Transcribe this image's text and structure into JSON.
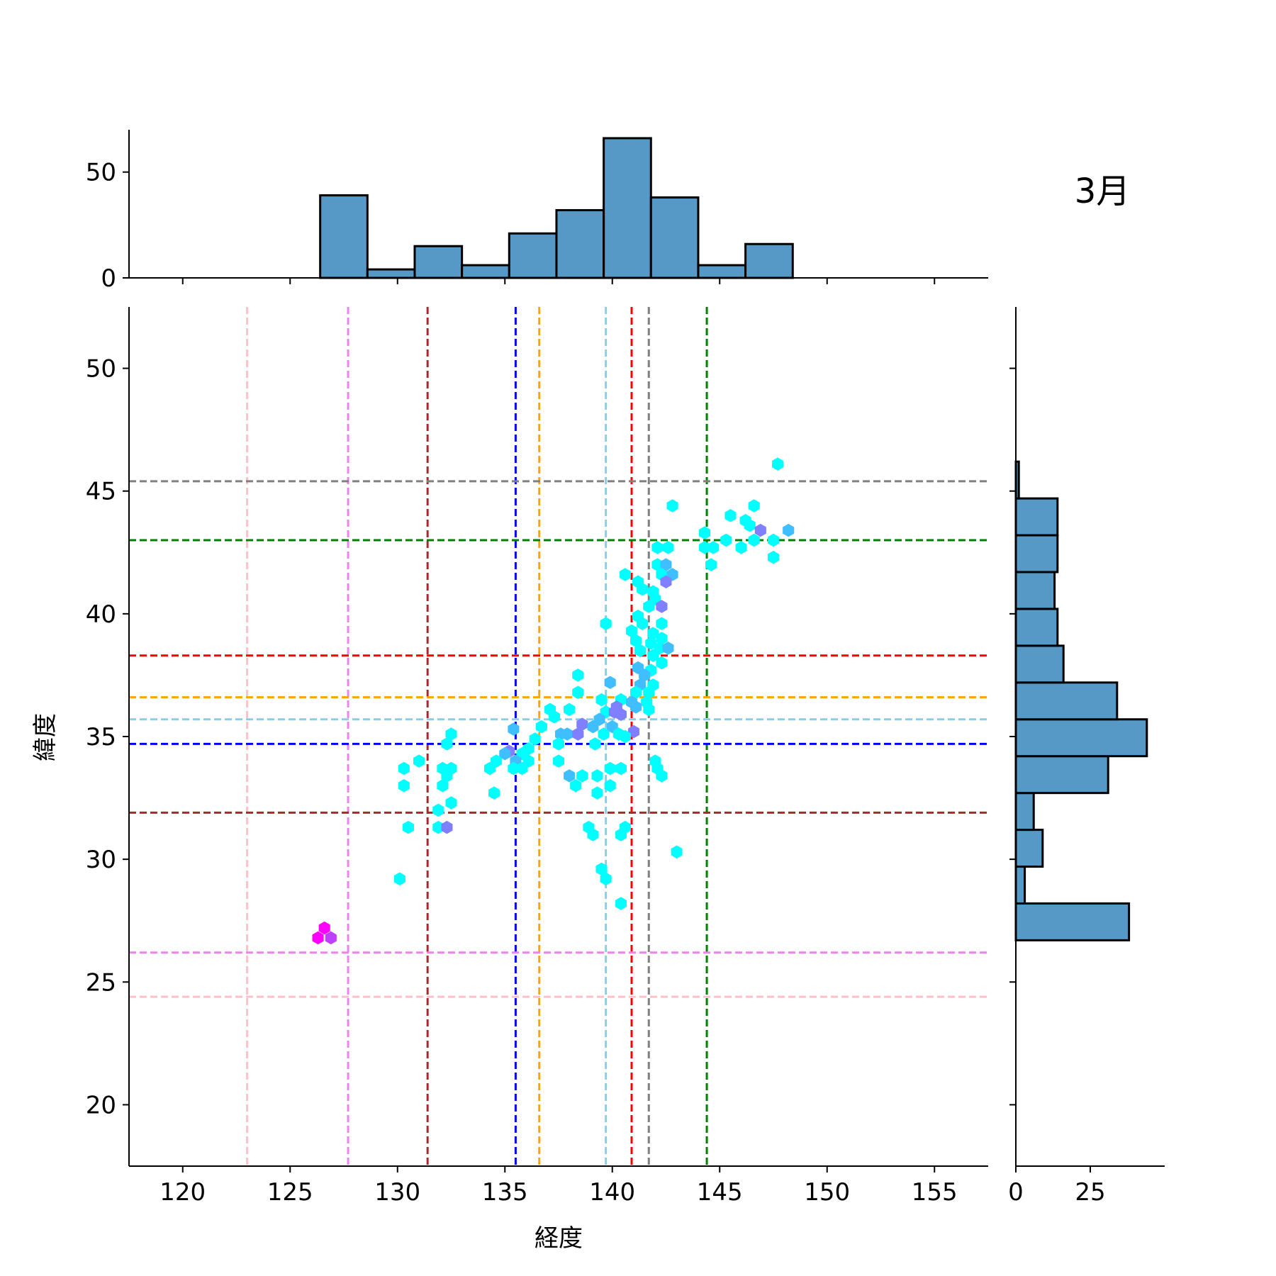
{
  "chart_data": {
    "type": "hexbin-joint",
    "title": "3月",
    "xlabel": "経度",
    "ylabel": "緯度",
    "xlim": [
      117.5,
      157.5
    ],
    "ylim": [
      17.5,
      52.5
    ],
    "xticks": [
      120,
      125,
      130,
      135,
      140,
      145,
      150,
      155
    ],
    "yticks": [
      20,
      25,
      30,
      35,
      40,
      45,
      50
    ],
    "grid": false,
    "reference_lines": {
      "vertical": [
        {
          "x": 123.0,
          "color": "#ffc0cb"
        },
        {
          "x": 127.7,
          "color": "#ee82ee"
        },
        {
          "x": 131.4,
          "color": "#a52a2a"
        },
        {
          "x": 135.5,
          "color": "#0000ff"
        },
        {
          "x": 136.6,
          "color": "#ffa500"
        },
        {
          "x": 139.7,
          "color": "#87ceeb"
        },
        {
          "x": 140.9,
          "color": "#ff0000"
        },
        {
          "x": 141.7,
          "color": "#808080"
        },
        {
          "x": 144.4,
          "color": "#008000"
        }
      ],
      "horizontal": [
        {
          "y": 45.4,
          "color": "#808080"
        },
        {
          "y": 43.0,
          "color": "#008000"
        },
        {
          "y": 38.3,
          "color": "#ff0000"
        },
        {
          "y": 36.6,
          "color": "#ffa500"
        },
        {
          "y": 35.7,
          "color": "#87ceeb"
        },
        {
          "y": 34.7,
          "color": "#0000ff"
        },
        {
          "y": 31.9,
          "color": "#a52a2a"
        },
        {
          "y": 26.2,
          "color": "#ee82ee"
        },
        {
          "y": 24.4,
          "color": "#ffc0cb"
        }
      ]
    },
    "hexbins": [
      {
        "x": 147.7,
        "y": 46.1,
        "c": "#00ffff"
      },
      {
        "x": 142.8,
        "y": 44.4,
        "c": "#00ffff"
      },
      {
        "x": 146.6,
        "y": 44.4,
        "c": "#00ffff"
      },
      {
        "x": 145.5,
        "y": 44.0,
        "c": "#00ffff"
      },
      {
        "x": 146.2,
        "y": 43.8,
        "c": "#00ffff"
      },
      {
        "x": 146.4,
        "y": 43.6,
        "c": "#00ffff"
      },
      {
        "x": 146.9,
        "y": 43.4,
        "c": "#7f7fff"
      },
      {
        "x": 148.2,
        "y": 43.4,
        "c": "#3fbfff"
      },
      {
        "x": 144.3,
        "y": 43.3,
        "c": "#00ffff"
      },
      {
        "x": 145.3,
        "y": 43.0,
        "c": "#00ffff"
      },
      {
        "x": 146.6,
        "y": 43.0,
        "c": "#00ffff"
      },
      {
        "x": 147.5,
        "y": 43.0,
        "c": "#00ffff"
      },
      {
        "x": 144.3,
        "y": 42.7,
        "c": "#00ffff"
      },
      {
        "x": 144.7,
        "y": 42.7,
        "c": "#00ffff"
      },
      {
        "x": 146.0,
        "y": 42.7,
        "c": "#00ffff"
      },
      {
        "x": 142.1,
        "y": 42.7,
        "c": "#00ffff"
      },
      {
        "x": 142.6,
        "y": 42.7,
        "c": "#00ffff"
      },
      {
        "x": 147.5,
        "y": 42.3,
        "c": "#00ffff"
      },
      {
        "x": 144.6,
        "y": 42.0,
        "c": "#00ffff"
      },
      {
        "x": 142.1,
        "y": 42.0,
        "c": "#00ffff"
      },
      {
        "x": 142.5,
        "y": 42.0,
        "c": "#3fbfff"
      },
      {
        "x": 140.6,
        "y": 41.6,
        "c": "#00ffff"
      },
      {
        "x": 142.3,
        "y": 41.6,
        "c": "#00ffff"
      },
      {
        "x": 142.8,
        "y": 41.6,
        "c": "#3fbfff"
      },
      {
        "x": 142.5,
        "y": 41.3,
        "c": "#7f7fff"
      },
      {
        "x": 141.2,
        "y": 41.3,
        "c": "#00ffff"
      },
      {
        "x": 141.4,
        "y": 41.0,
        "c": "#00ffff"
      },
      {
        "x": 141.9,
        "y": 40.9,
        "c": "#00ffff"
      },
      {
        "x": 142.0,
        "y": 40.6,
        "c": "#00ffff"
      },
      {
        "x": 141.7,
        "y": 40.3,
        "c": "#00ffff"
      },
      {
        "x": 142.3,
        "y": 40.3,
        "c": "#7f7fff"
      },
      {
        "x": 141.2,
        "y": 39.9,
        "c": "#00ffff"
      },
      {
        "x": 141.4,
        "y": 39.6,
        "c": "#00ffff"
      },
      {
        "x": 139.7,
        "y": 39.6,
        "c": "#00ffff"
      },
      {
        "x": 142.3,
        "y": 39.6,
        "c": "#00ffff"
      },
      {
        "x": 140.9,
        "y": 39.3,
        "c": "#00ffff"
      },
      {
        "x": 141.9,
        "y": 39.2,
        "c": "#00ffff"
      },
      {
        "x": 142.3,
        "y": 39.0,
        "c": "#00ffff"
      },
      {
        "x": 141.1,
        "y": 38.9,
        "c": "#00ffff"
      },
      {
        "x": 141.8,
        "y": 38.8,
        "c": "#00ffff"
      },
      {
        "x": 142.2,
        "y": 38.6,
        "c": "#00ffff"
      },
      {
        "x": 142.6,
        "y": 38.6,
        "c": "#3fbfff"
      },
      {
        "x": 141.3,
        "y": 38.5,
        "c": "#00ffff"
      },
      {
        "x": 141.9,
        "y": 38.3,
        "c": "#00ffff"
      },
      {
        "x": 142.3,
        "y": 38.0,
        "c": "#00ffff"
      },
      {
        "x": 141.2,
        "y": 37.8,
        "c": "#3fbfff"
      },
      {
        "x": 141.8,
        "y": 37.7,
        "c": "#00ffff"
      },
      {
        "x": 138.4,
        "y": 37.5,
        "c": "#00ffff"
      },
      {
        "x": 141.5,
        "y": 37.5,
        "c": "#3fbfff"
      },
      {
        "x": 141.3,
        "y": 37.1,
        "c": "#3fbfff"
      },
      {
        "x": 139.9,
        "y": 37.2,
        "c": "#3fbfff"
      },
      {
        "x": 141.9,
        "y": 37.1,
        "c": "#00ffff"
      },
      {
        "x": 138.4,
        "y": 36.8,
        "c": "#00ffff"
      },
      {
        "x": 141.1,
        "y": 36.8,
        "c": "#00ffff"
      },
      {
        "x": 141.7,
        "y": 36.8,
        "c": "#00ffff"
      },
      {
        "x": 139.5,
        "y": 36.5,
        "c": "#00ffff"
      },
      {
        "x": 140.4,
        "y": 36.5,
        "c": "#00ffff"
      },
      {
        "x": 140.9,
        "y": 36.4,
        "c": "#3fbfff"
      },
      {
        "x": 141.6,
        "y": 36.4,
        "c": "#00ffff"
      },
      {
        "x": 140.2,
        "y": 36.2,
        "c": "#7f7fff"
      },
      {
        "x": 141.1,
        "y": 36.2,
        "c": "#3fbfff"
      },
      {
        "x": 138.0,
        "y": 36.1,
        "c": "#00ffff"
      },
      {
        "x": 141.7,
        "y": 36.1,
        "c": "#00ffff"
      },
      {
        "x": 137.1,
        "y": 36.1,
        "c": "#00ffff"
      },
      {
        "x": 139.7,
        "y": 36.0,
        "c": "#00ffff"
      },
      {
        "x": 140.1,
        "y": 36.0,
        "c": "#7f7fff"
      },
      {
        "x": 140.4,
        "y": 35.9,
        "c": "#7f7fff"
      },
      {
        "x": 137.3,
        "y": 35.8,
        "c": "#00ffff"
      },
      {
        "x": 139.4,
        "y": 35.7,
        "c": "#3fbfff"
      },
      {
        "x": 138.6,
        "y": 35.5,
        "c": "#7f7fff"
      },
      {
        "x": 139.1,
        "y": 35.4,
        "c": "#3fbfff"
      },
      {
        "x": 140.0,
        "y": 35.4,
        "c": "#3fbfff"
      },
      {
        "x": 141.0,
        "y": 35.2,
        "c": "#7f7fff"
      },
      {
        "x": 136.7,
        "y": 35.4,
        "c": "#00ffff"
      },
      {
        "x": 135.4,
        "y": 35.3,
        "c": "#3fbfff"
      },
      {
        "x": 140.3,
        "y": 35.1,
        "c": "#00ffff"
      },
      {
        "x": 137.6,
        "y": 35.1,
        "c": "#3fbfff"
      },
      {
        "x": 137.9,
        "y": 35.1,
        "c": "#3fbfff"
      },
      {
        "x": 138.4,
        "y": 35.1,
        "c": "#7f7fff"
      },
      {
        "x": 139.6,
        "y": 35.1,
        "c": "#00ffff"
      },
      {
        "x": 132.5,
        "y": 35.1,
        "c": "#00ffff"
      },
      {
        "x": 140.6,
        "y": 35.0,
        "c": "#00ffff"
      },
      {
        "x": 136.4,
        "y": 34.9,
        "c": "#00ffff"
      },
      {
        "x": 137.5,
        "y": 34.7,
        "c": "#00ffff"
      },
      {
        "x": 139.2,
        "y": 34.7,
        "c": "#00ffff"
      },
      {
        "x": 132.3,
        "y": 34.7,
        "c": "#00ffff"
      },
      {
        "x": 136.1,
        "y": 34.5,
        "c": "#00ffff"
      },
      {
        "x": 135.2,
        "y": 34.4,
        "c": "#7f7fff"
      },
      {
        "x": 135.8,
        "y": 34.3,
        "c": "#00ffff"
      },
      {
        "x": 135.0,
        "y": 34.3,
        "c": "#3fbfff"
      },
      {
        "x": 134.6,
        "y": 34.0,
        "c": "#00ffff"
      },
      {
        "x": 135.5,
        "y": 34.0,
        "c": "#3fbfff"
      },
      {
        "x": 136.1,
        "y": 34.0,
        "c": "#00ffff"
      },
      {
        "x": 137.5,
        "y": 34.0,
        "c": "#00ffff"
      },
      {
        "x": 131.0,
        "y": 34.0,
        "c": "#00ffff"
      },
      {
        "x": 142.0,
        "y": 34.0,
        "c": "#00ffff"
      },
      {
        "x": 135.4,
        "y": 33.7,
        "c": "#00ffff"
      },
      {
        "x": 135.8,
        "y": 33.7,
        "c": "#00ffff"
      },
      {
        "x": 134.3,
        "y": 33.7,
        "c": "#00ffff"
      },
      {
        "x": 130.3,
        "y": 33.7,
        "c": "#00ffff"
      },
      {
        "x": 132.1,
        "y": 33.7,
        "c": "#00ffff"
      },
      {
        "x": 132.5,
        "y": 33.7,
        "c": "#00ffff"
      },
      {
        "x": 139.9,
        "y": 33.7,
        "c": "#00ffff"
      },
      {
        "x": 140.4,
        "y": 33.7,
        "c": "#00ffff"
      },
      {
        "x": 142.1,
        "y": 33.7,
        "c": "#00ffff"
      },
      {
        "x": 132.3,
        "y": 33.4,
        "c": "#00ffff"
      },
      {
        "x": 138.0,
        "y": 33.4,
        "c": "#3fbfff"
      },
      {
        "x": 138.6,
        "y": 33.4,
        "c": "#00ffff"
      },
      {
        "x": 139.3,
        "y": 33.4,
        "c": "#00ffff"
      },
      {
        "x": 142.3,
        "y": 33.4,
        "c": "#00ffff"
      },
      {
        "x": 130.3,
        "y": 33.0,
        "c": "#00ffff"
      },
      {
        "x": 132.1,
        "y": 33.0,
        "c": "#00ffff"
      },
      {
        "x": 138.3,
        "y": 33.0,
        "c": "#00ffff"
      },
      {
        "x": 139.9,
        "y": 33.0,
        "c": "#00ffff"
      },
      {
        "x": 139.3,
        "y": 32.7,
        "c": "#00ffff"
      },
      {
        "x": 134.5,
        "y": 32.7,
        "c": "#00ffff"
      },
      {
        "x": 132.5,
        "y": 32.3,
        "c": "#00ffff"
      },
      {
        "x": 131.9,
        "y": 32.0,
        "c": "#00ffff"
      },
      {
        "x": 130.5,
        "y": 31.3,
        "c": "#00ffff"
      },
      {
        "x": 131.9,
        "y": 31.3,
        "c": "#00ffff"
      },
      {
        "x": 132.3,
        "y": 31.3,
        "c": "#7f7fff"
      },
      {
        "x": 138.9,
        "y": 31.3,
        "c": "#00ffff"
      },
      {
        "x": 140.6,
        "y": 31.3,
        "c": "#00ffff"
      },
      {
        "x": 139.1,
        "y": 31.0,
        "c": "#00ffff"
      },
      {
        "x": 140.4,
        "y": 31.0,
        "c": "#00ffff"
      },
      {
        "x": 143.0,
        "y": 30.3,
        "c": "#00ffff"
      },
      {
        "x": 139.5,
        "y": 29.6,
        "c": "#00ffff"
      },
      {
        "x": 130.1,
        "y": 29.2,
        "c": "#00ffff"
      },
      {
        "x": 139.7,
        "y": 29.2,
        "c": "#00ffff"
      },
      {
        "x": 140.4,
        "y": 28.2,
        "c": "#00ffff"
      },
      {
        "x": 126.6,
        "y": 27.2,
        "c": "#ff00ff"
      },
      {
        "x": 126.3,
        "y": 26.8,
        "c": "#ff00ff"
      },
      {
        "x": 126.9,
        "y": 26.8,
        "c": "#bf3fff"
      }
    ],
    "marginal_x": {
      "bin_edges": [
        126.4,
        128.6,
        130.8,
        133.0,
        135.2,
        137.4,
        139.6,
        141.8,
        144.0,
        146.2,
        148.4
      ],
      "counts": [
        39,
        4,
        15,
        6,
        21,
        32,
        66,
        38,
        6,
        16
      ],
      "yticks": [
        0,
        50
      ],
      "ylim": [
        0,
        70
      ],
      "color": "#5799c6"
    },
    "marginal_y": {
      "bin_edges": [
        26.7,
        28.2,
        29.7,
        31.2,
        32.7,
        34.2,
        35.7,
        37.2,
        38.7,
        40.2,
        41.7,
        43.2,
        44.7,
        46.2
      ],
      "counts": [
        38,
        3,
        9,
        6,
        31,
        44,
        34,
        16,
        14,
        13,
        14,
        14,
        1
      ],
      "xticks": [
        0,
        25
      ],
      "xlim": [
        0,
        50
      ],
      "color": "#5799c6"
    }
  }
}
